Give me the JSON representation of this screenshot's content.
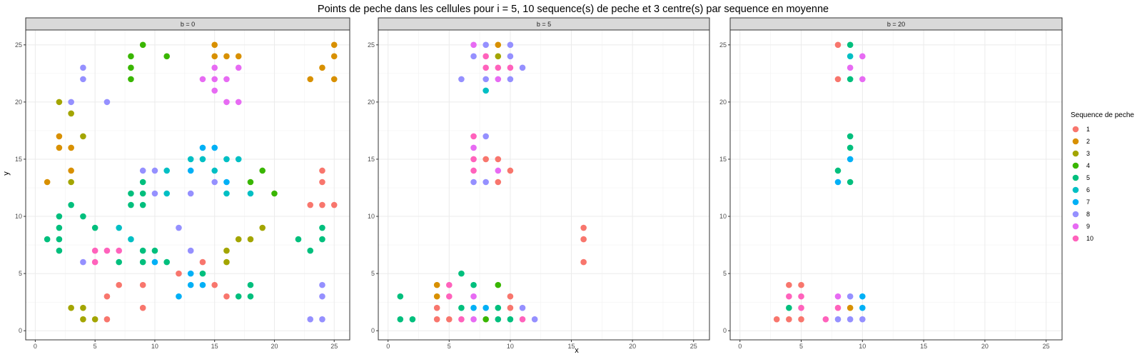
{
  "chart_data": {
    "type": "scatter",
    "title": "Points de peche dans les cellules pour i = 5, 10 sequence(s) de peche et 3 centre(s) par sequence en moyenne",
    "xlabel": "x",
    "ylabel": "y",
    "xlim": [
      -0.8,
      26.3
    ],
    "ylim": [
      -0.8,
      26.3
    ],
    "x_ticks": [
      0,
      5,
      10,
      15,
      20,
      25
    ],
    "y_ticks": [
      0,
      5,
      10,
      15,
      20,
      25
    ],
    "grid": true,
    "legend_title": "Sequence de peche",
    "legend_position": "right",
    "series_colors": {
      "1": "#F8766D",
      "2": "#D89000",
      "3": "#A3A500",
      "4": "#39B600",
      "5": "#00BF7D",
      "6": "#00BFC4",
      "7": "#00B0F6",
      "8": "#9590FF",
      "9": "#E76BF3",
      "10": "#FF62BC"
    },
    "legend_labels": [
      "1",
      "2",
      "3",
      "4",
      "5",
      "6",
      "7",
      "8",
      "9",
      "10"
    ],
    "facets": [
      {
        "label": "b = 0",
        "points": [
          [
            1,
            13,
            2
          ],
          [
            2,
            20,
            3
          ],
          [
            2,
            17,
            2
          ],
          [
            2,
            16,
            2
          ],
          [
            3,
            19,
            3
          ],
          [
            3,
            16,
            2
          ],
          [
            3,
            14,
            2
          ],
          [
            3,
            13,
            3
          ],
          [
            4,
            17,
            3
          ],
          [
            3,
            20,
            8
          ],
          [
            4,
            23,
            8
          ],
          [
            4,
            22,
            8
          ],
          [
            6,
            20,
            8
          ],
          [
            8,
            24,
            4
          ],
          [
            8,
            23,
            4
          ],
          [
            8,
            22,
            4
          ],
          [
            9,
            25,
            4
          ],
          [
            11,
            24,
            4
          ],
          [
            15,
            25,
            2
          ],
          [
            15,
            24,
            2
          ],
          [
            16,
            24,
            2
          ],
          [
            17,
            24,
            2
          ],
          [
            17,
            23,
            9
          ],
          [
            15,
            23,
            9
          ],
          [
            15,
            22,
            9
          ],
          [
            14,
            22,
            9
          ],
          [
            16,
            22,
            9
          ],
          [
            15,
            21,
            9
          ],
          [
            16,
            20,
            9
          ],
          [
            17,
            20,
            9
          ],
          [
            23,
            22,
            2
          ],
          [
            24,
            23,
            2
          ],
          [
            25,
            25,
            2
          ],
          [
            25,
            24,
            2
          ],
          [
            25,
            22,
            2
          ],
          [
            14,
            16,
            7
          ],
          [
            15,
            16,
            7
          ],
          [
            13,
            15,
            6
          ],
          [
            14,
            15,
            6
          ],
          [
            16,
            15,
            6
          ],
          [
            17,
            15,
            6
          ],
          [
            11,
            14,
            6
          ],
          [
            13,
            14,
            7
          ],
          [
            15,
            14,
            6
          ],
          [
            16,
            13,
            7
          ],
          [
            15,
            13,
            8
          ],
          [
            19,
            14,
            4
          ],
          [
            18,
            13,
            4
          ],
          [
            16,
            12,
            6
          ],
          [
            18,
            12,
            6
          ],
          [
            20,
            12,
            4
          ],
          [
            13,
            12,
            8
          ],
          [
            9,
            14,
            8
          ],
          [
            10,
            14,
            8
          ],
          [
            9,
            13,
            5
          ],
          [
            8,
            12,
            5
          ],
          [
            9,
            12,
            5
          ],
          [
            10,
            12,
            8
          ],
          [
            11,
            12,
            6
          ],
          [
            8,
            11,
            5
          ],
          [
            9,
            11,
            5
          ],
          [
            2,
            10,
            5
          ],
          [
            2,
            9,
            5
          ],
          [
            1,
            8,
            5
          ],
          [
            2,
            8,
            5
          ],
          [
            2,
            7,
            5
          ],
          [
            3,
            11,
            5
          ],
          [
            4,
            10,
            5
          ],
          [
            5,
            9,
            5
          ],
          [
            7,
            9,
            6
          ],
          [
            8,
            8,
            6
          ],
          [
            12,
            9,
            8
          ],
          [
            17,
            8,
            3
          ],
          [
            18,
            8,
            3
          ],
          [
            19,
            9,
            3
          ],
          [
            22,
            8,
            5
          ],
          [
            23,
            7,
            5
          ],
          [
            24,
            9,
            5
          ],
          [
            24,
            8,
            5
          ],
          [
            24,
            14,
            1
          ],
          [
            24,
            13,
            1
          ],
          [
            23,
            11,
            1
          ],
          [
            24,
            11,
            1
          ],
          [
            25,
            11,
            1
          ],
          [
            4,
            6,
            8
          ],
          [
            5,
            7,
            10
          ],
          [
            5,
            6,
            10
          ],
          [
            6,
            7,
            10
          ],
          [
            7,
            7,
            10
          ],
          [
            7,
            6,
            5
          ],
          [
            9,
            7,
            5
          ],
          [
            10,
            7,
            5
          ],
          [
            9,
            6,
            5
          ],
          [
            10,
            6,
            7
          ],
          [
            11,
            6,
            5
          ],
          [
            13,
            7,
            8
          ],
          [
            16,
            7,
            3
          ],
          [
            16,
            6,
            3
          ],
          [
            7,
            4,
            1
          ],
          [
            6,
            3,
            1
          ],
          [
            6,
            1,
            1
          ],
          [
            9,
            4,
            1
          ],
          [
            9,
            2,
            1
          ],
          [
            12,
            5,
            1
          ],
          [
            13,
            5,
            7
          ],
          [
            14,
            5,
            5
          ],
          [
            12,
            3,
            7
          ],
          [
            13,
            4,
            7
          ],
          [
            14,
            4,
            7
          ],
          [
            14,
            6,
            1
          ],
          [
            15,
            4,
            1
          ],
          [
            16,
            3,
            1
          ],
          [
            17,
            3,
            5
          ],
          [
            18,
            4,
            5
          ],
          [
            18,
            3,
            5
          ],
          [
            3,
            2,
            3
          ],
          [
            4,
            2,
            3
          ],
          [
            4,
            1,
            3
          ],
          [
            5,
            1,
            3
          ],
          [
            23,
            1,
            8
          ],
          [
            24,
            1,
            8
          ],
          [
            24,
            4,
            8
          ],
          [
            24,
            3,
            8
          ]
        ]
      },
      {
        "label": "b = 5",
        "points": [
          [
            7,
            25,
            9
          ],
          [
            8,
            25,
            8
          ],
          [
            9,
            25,
            2
          ],
          [
            10,
            25,
            8
          ],
          [
            7,
            24,
            8
          ],
          [
            8,
            24,
            10
          ],
          [
            9,
            24,
            3
          ],
          [
            10,
            24,
            8
          ],
          [
            8,
            23,
            10
          ],
          [
            9,
            23,
            10
          ],
          [
            10,
            23,
            10
          ],
          [
            11,
            23,
            8
          ],
          [
            6,
            22,
            8
          ],
          [
            8,
            22,
            8
          ],
          [
            9,
            22,
            9
          ],
          [
            10,
            22,
            8
          ],
          [
            8,
            21,
            6
          ],
          [
            7,
            17,
            10
          ],
          [
            8,
            17,
            8
          ],
          [
            7,
            16,
            9
          ],
          [
            7,
            15,
            10
          ],
          [
            8,
            15,
            1
          ],
          [
            9,
            15,
            1
          ],
          [
            7,
            14,
            10
          ],
          [
            9,
            14,
            9
          ],
          [
            10,
            14,
            1
          ],
          [
            7,
            13,
            8
          ],
          [
            8,
            13,
            8
          ],
          [
            9,
            13,
            1
          ],
          [
            16,
            9,
            1
          ],
          [
            16,
            8,
            1
          ],
          [
            16,
            6,
            1
          ],
          [
            6,
            5,
            5
          ],
          [
            4,
            4,
            2
          ],
          [
            5,
            4,
            10
          ],
          [
            7,
            4,
            5
          ],
          [
            9,
            4,
            4
          ],
          [
            4,
            3,
            2
          ],
          [
            5,
            3,
            10
          ],
          [
            7,
            3,
            9
          ],
          [
            10,
            3,
            1
          ],
          [
            1,
            3,
            5
          ],
          [
            4,
            2,
            1
          ],
          [
            6,
            2,
            5
          ],
          [
            7,
            2,
            7
          ],
          [
            8,
            2,
            7
          ],
          [
            9,
            2,
            5
          ],
          [
            10,
            2,
            1
          ],
          [
            11,
            2,
            8
          ],
          [
            1,
            1,
            5
          ],
          [
            2,
            1,
            5
          ],
          [
            4,
            1,
            1
          ],
          [
            5,
            1,
            1
          ],
          [
            6,
            1,
            10
          ],
          [
            7,
            1,
            9
          ],
          [
            8,
            1,
            4
          ],
          [
            9,
            1,
            5
          ],
          [
            10,
            1,
            5
          ],
          [
            11,
            1,
            10
          ],
          [
            12,
            1,
            8
          ]
        ]
      },
      {
        "label": "b = 20",
        "points": [
          [
            8,
            25,
            1
          ],
          [
            9,
            25,
            5
          ],
          [
            9,
            24,
            6
          ],
          [
            10,
            24,
            9
          ],
          [
            9,
            23,
            9
          ],
          [
            8,
            22,
            1
          ],
          [
            9,
            22,
            5
          ],
          [
            10,
            22,
            9
          ],
          [
            9,
            17,
            5
          ],
          [
            9,
            16,
            5
          ],
          [
            9,
            15,
            7
          ],
          [
            8,
            14,
            5
          ],
          [
            8,
            13,
            7
          ],
          [
            9,
            13,
            5
          ],
          [
            4,
            4,
            1
          ],
          [
            5,
            4,
            1
          ],
          [
            4,
            3,
            10
          ],
          [
            5,
            3,
            10
          ],
          [
            8,
            3,
            9
          ],
          [
            9,
            3,
            8
          ],
          [
            10,
            3,
            7
          ],
          [
            4,
            2,
            5
          ],
          [
            5,
            2,
            10
          ],
          [
            8,
            2,
            10
          ],
          [
            9,
            2,
            2
          ],
          [
            10,
            2,
            7
          ],
          [
            3,
            1,
            1
          ],
          [
            4,
            1,
            1
          ],
          [
            5,
            1,
            1
          ],
          [
            7,
            1,
            10
          ],
          [
            8,
            1,
            8
          ],
          [
            9,
            1,
            8
          ],
          [
            10,
            1,
            8
          ]
        ]
      }
    ]
  }
}
